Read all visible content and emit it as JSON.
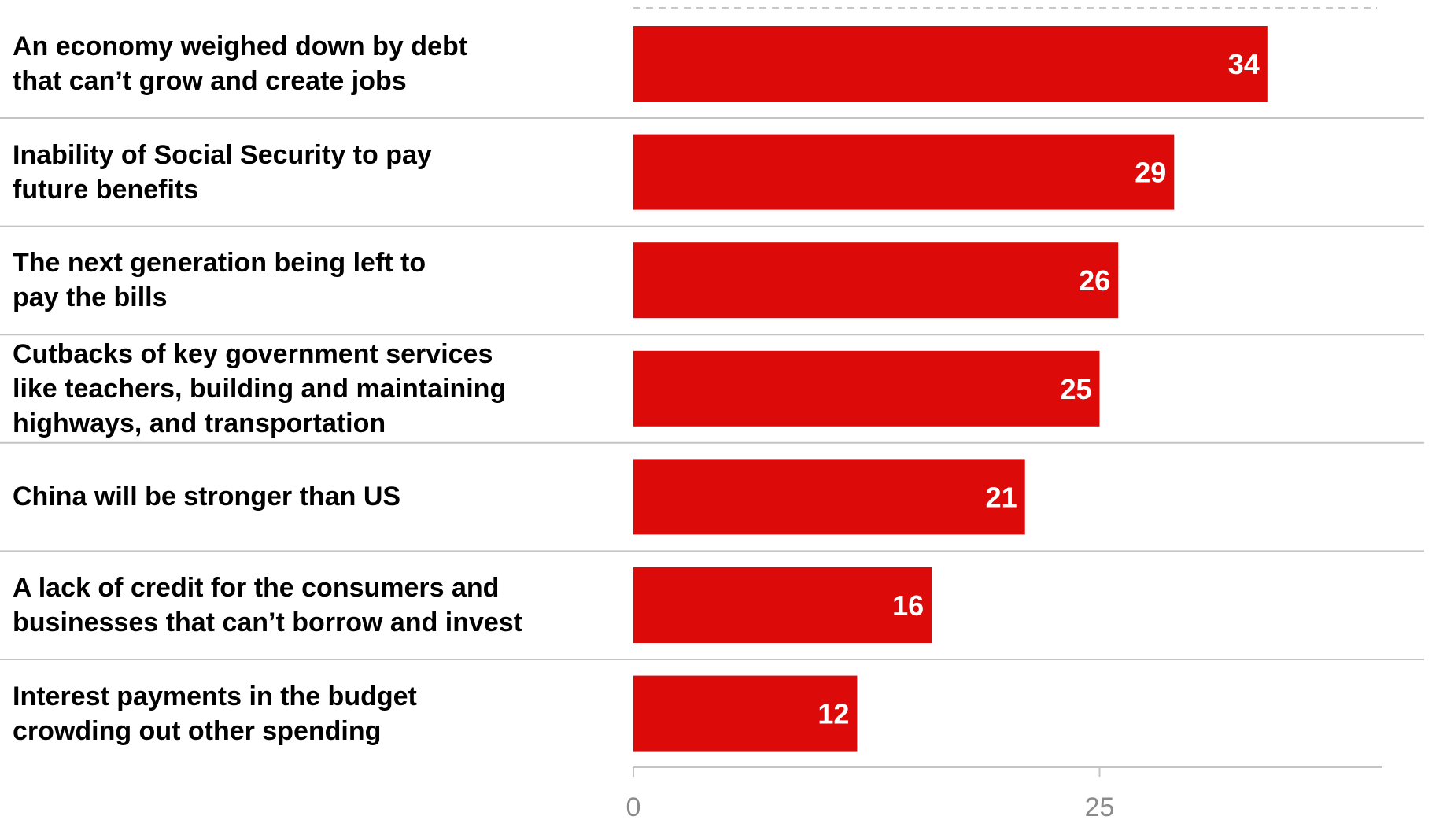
{
  "chart_data": {
    "type": "bar",
    "orientation": "horizontal",
    "categories": [
      "An economy weighed down by debt\nthat can’t grow and create jobs",
      "Inability of Social Security to pay\nfuture benefits",
      "The next generation being left to\npay the bills",
      "Cutbacks of key government services\nlike teachers, building and maintaining\nhighways, and transportation",
      "China will be stronger than US",
      "A lack of credit for the consumers and\nbusinesses that can’t borrow and invest",
      "Interest payments in the budget\ncrowding out other spending"
    ],
    "values": [
      34,
      29,
      26,
      25,
      21,
      16,
      12
    ],
    "xlim": [
      0,
      40
    ],
    "xticks": [
      "0",
      "25"
    ],
    "bar_color": "#dd0a0a",
    "data_labels": true,
    "title": "",
    "xlabel": "",
    "ylabel": ""
  }
}
